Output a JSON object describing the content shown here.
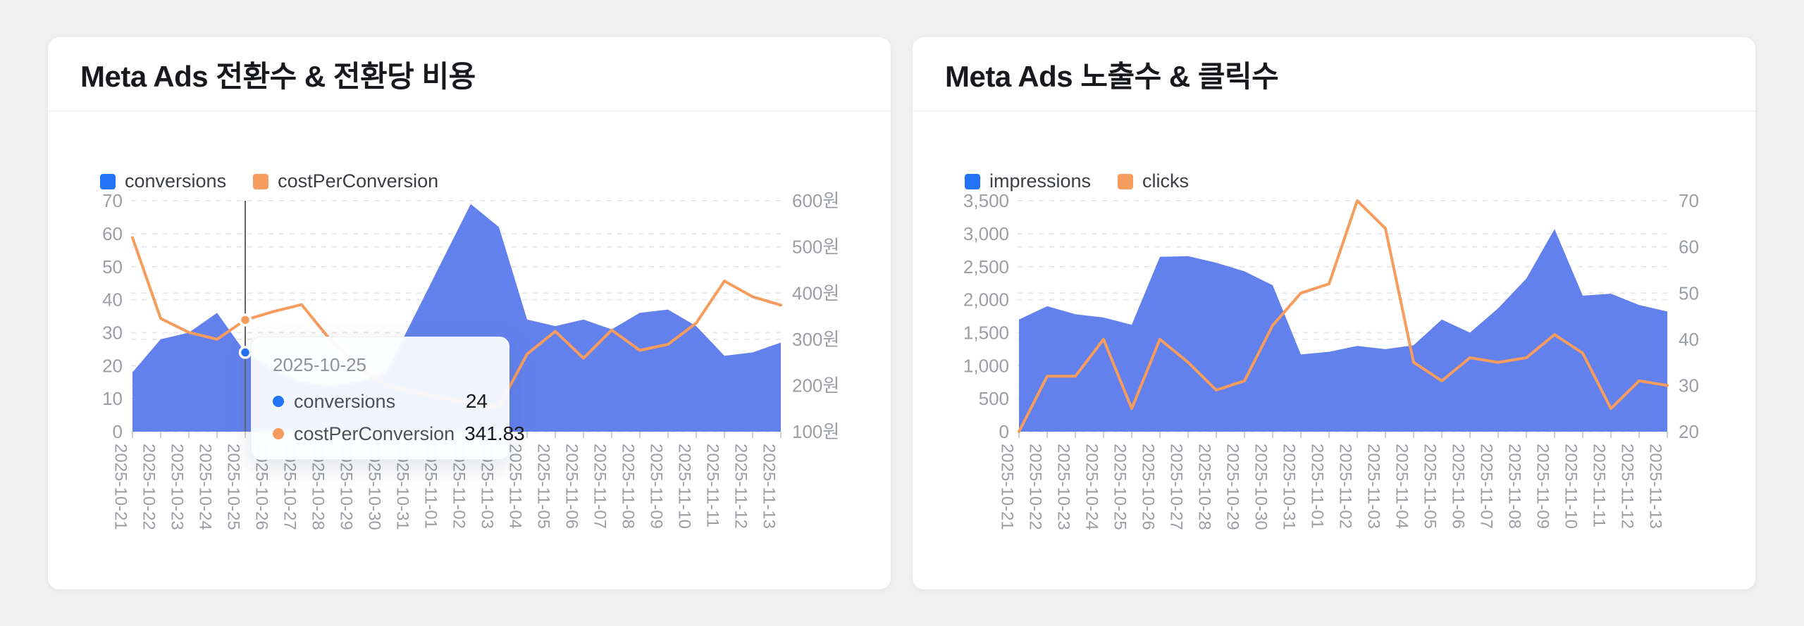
{
  "colors": {
    "page_bg": "#f0f0f1",
    "card_bg": "#ffffff",
    "blue_accent": "#2273f5",
    "blue_area": "#5d7cec",
    "orange_line": "#f69c5d",
    "grid": "#e4e5e8",
    "axis_text": "#9b9ea3",
    "crosshair": "#60646a"
  },
  "chart_data": [
    {
      "type": "area",
      "title": "Meta Ads 전환수 & 전환당 비용",
      "categories": [
        "2025-10-21",
        "2025-10-22",
        "2025-10-23",
        "2025-10-24",
        "2025-10-25",
        "2025-10-26",
        "2025-10-27",
        "2025-10-28",
        "2025-10-29",
        "2025-10-30",
        "2025-10-31",
        "2025-11-01",
        "2025-11-02",
        "2025-11-03",
        "2025-11-04",
        "2025-11-05",
        "2025-11-06",
        "2025-11-07",
        "2025-11-08",
        "2025-11-09",
        "2025-11-10",
        "2025-11-11",
        "2025-11-12",
        "2025-11-13"
      ],
      "series": [
        {
          "name": "conversions",
          "type": "area",
          "axis": "left",
          "color": "#2273f5",
          "fill": "#5d7cec",
          "values": [
            18,
            28,
            30,
            36,
            24,
            19,
            15,
            14,
            15,
            18,
            35,
            52,
            69,
            62,
            34,
            32,
            34,
            31,
            36,
            37,
            32,
            23,
            24,
            27
          ]
        },
        {
          "name": "costPerConversion",
          "type": "line",
          "axis": "right",
          "color": "#f69c5d",
          "values": [
            520,
            345,
            315,
            300,
            341.83,
            360,
            375,
            300,
            240,
            200,
            186,
            173,
            161,
            154,
            268,
            317,
            259,
            320,
            276,
            289,
            335,
            426,
            392,
            374
          ]
        }
      ],
      "left_axis": {
        "min": 0,
        "max": 70,
        "ticks": [
          0,
          10,
          20,
          30,
          40,
          50,
          60,
          70
        ],
        "tick_labels": [
          "0",
          "10",
          "20",
          "30",
          "40",
          "50",
          "60",
          "70"
        ]
      },
      "right_axis": {
        "min": 100,
        "max": 600,
        "ticks": [
          100,
          200,
          300,
          400,
          500,
          600
        ],
        "tick_labels": [
          "100원",
          "200원",
          "300원",
          "400원",
          "500원",
          "600원"
        ]
      },
      "grid": true,
      "legend_position": "top-left",
      "tooltip": {
        "date": "2025-10-25",
        "index": 4,
        "rows": [
          {
            "name": "conversions",
            "value": "24",
            "num": 24,
            "axis": "left",
            "color": "#2273f5"
          },
          {
            "name": "costPerConversion",
            "value": "341.83",
            "num": 341.83,
            "axis": "right",
            "color": "#f69c5d"
          }
        ]
      }
    },
    {
      "type": "area",
      "title": "Meta Ads 노출수 & 클릭수",
      "categories": [
        "2025-10-21",
        "2025-10-22",
        "2025-10-23",
        "2025-10-24",
        "2025-10-25",
        "2025-10-26",
        "2025-10-27",
        "2025-10-28",
        "2025-10-29",
        "2025-10-30",
        "2025-10-31",
        "2025-11-01",
        "2025-11-02",
        "2025-11-03",
        "2025-11-04",
        "2025-11-05",
        "2025-11-06",
        "2025-11-07",
        "2025-11-08",
        "2025-11-09",
        "2025-11-10",
        "2025-11-11",
        "2025-11-12",
        "2025-11-13"
      ],
      "series": [
        {
          "name": "impressions",
          "type": "area",
          "axis": "left",
          "color": "#2273f5",
          "fill": "#5d7cec",
          "values": [
            1700,
            1900,
            1780,
            1730,
            1620,
            2650,
            2660,
            2560,
            2430,
            2220,
            1170,
            1210,
            1300,
            1250,
            1310,
            1700,
            1500,
            1870,
            2320,
            3070,
            2060,
            2090,
            1920,
            1820
          ]
        },
        {
          "name": "clicks",
          "type": "line",
          "axis": "right",
          "color": "#f69c5d",
          "values": [
            20,
            32,
            32,
            40,
            25,
            40,
            35,
            29,
            31,
            43,
            50,
            52,
            70,
            64,
            35,
            31,
            36,
            35,
            36,
            41,
            37,
            25,
            31,
            30
          ]
        }
      ],
      "left_axis": {
        "min": 0,
        "max": 3500,
        "ticks": [
          0,
          500,
          1000,
          1500,
          2000,
          2500,
          3000,
          3500
        ],
        "tick_labels": [
          "0",
          "500",
          "1,000",
          "1,500",
          "2,000",
          "2,500",
          "3,000",
          "3,500"
        ]
      },
      "right_axis": {
        "min": 20,
        "max": 70,
        "ticks": [
          20,
          30,
          40,
          50,
          60,
          70
        ],
        "tick_labels": [
          "20",
          "30",
          "40",
          "50",
          "60",
          "70"
        ]
      },
      "grid": true,
      "legend_position": "top-left"
    }
  ]
}
